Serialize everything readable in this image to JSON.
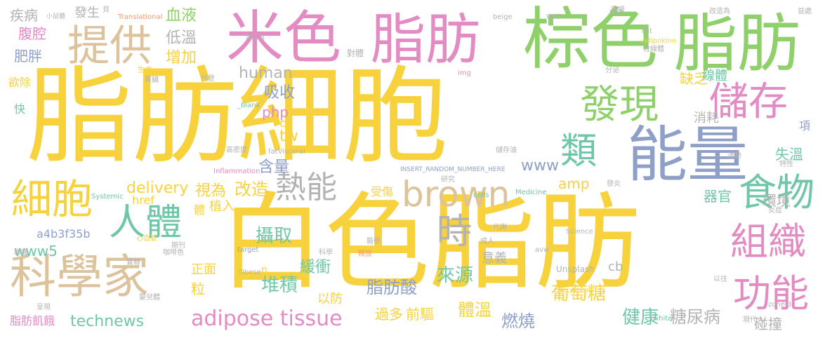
{
  "palette": {
    "yellow": "#f7d23c",
    "tan": "#dcc39c",
    "green": "#8fd06a",
    "blue": "#8fa0c8",
    "pink": "#e38bc3",
    "orange": "#f59a6a",
    "gray": "#b3b3b3",
    "teal": "#6fc7a8"
  },
  "words": [
    "脂肪細胞",
    "白色脂肪",
    "棕色",
    "脂肪",
    "米色",
    "脂肪",
    "能量",
    "科學家",
    "提供",
    "儲存",
    "發現",
    "細胞",
    "人體",
    "brown",
    "熱能",
    "時",
    "類",
    "食物",
    "組織",
    "功能",
    "adipose tissue",
    "technews",
    "脂肪酸",
    "葡萄糖",
    "堆積",
    "攝取",
    "來源",
    "體溫",
    "燃燒",
    "健康",
    "糖尿病",
    "碰撞",
    "www5",
    "a4b3f35b",
    "delivery",
    "改造",
    "視為",
    "含量",
    "www",
    "amp",
    "php",
    "tw",
    "human",
    "吸收",
    "低溫",
    "增加",
    "血液",
    "腹腔",
    "肥胖",
    "疾病",
    "發生",
    "缺乏",
    "消耗",
    "失溫",
    "環境",
    "器官",
    "線體",
    "緩衝",
    "正面",
    "粒",
    "意義",
    "過多",
    "前驅",
    "以防",
    "脂肪飢餓",
    "href",
    "植入",
    "體",
    "受傷",
    "ck",
    "欲除",
    "快",
    "cb",
    "項",
    "n",
    "Unsplash",
    "Secretion",
    "Science",
    "Medicine",
    "target",
    "Obese",
    "Systemic",
    "Inflammation",
    "_blank",
    "fatVisceral",
    "INSERT_RANDOM_NUMBER_HERE",
    "img",
    "cells",
    "avw",
    "zoneid",
    "BAT",
    "WAT",
    "beige",
    "Fat",
    "Adipokine",
    "Translational",
    "white",
    "對體",
    "貝",
    "小鼠體",
    "誤以為",
    "生成",
    "腎臟",
    "刊登",
    "儲存油",
    "運動",
    "研究",
    "分泌",
    "炎症",
    "特性",
    "發炎",
    "科學",
    "釋放",
    "醫學",
    "成人",
    "心血管",
    "高密度",
    "咖啡色",
    "實驗",
    "呈現",
    "嬰兒體",
    "現代人",
    "以往",
    "代謝",
    "轉譯",
    "期刊",
    "困擾",
    "改造為",
    "益處",
    "粒線體"
  ]
}
